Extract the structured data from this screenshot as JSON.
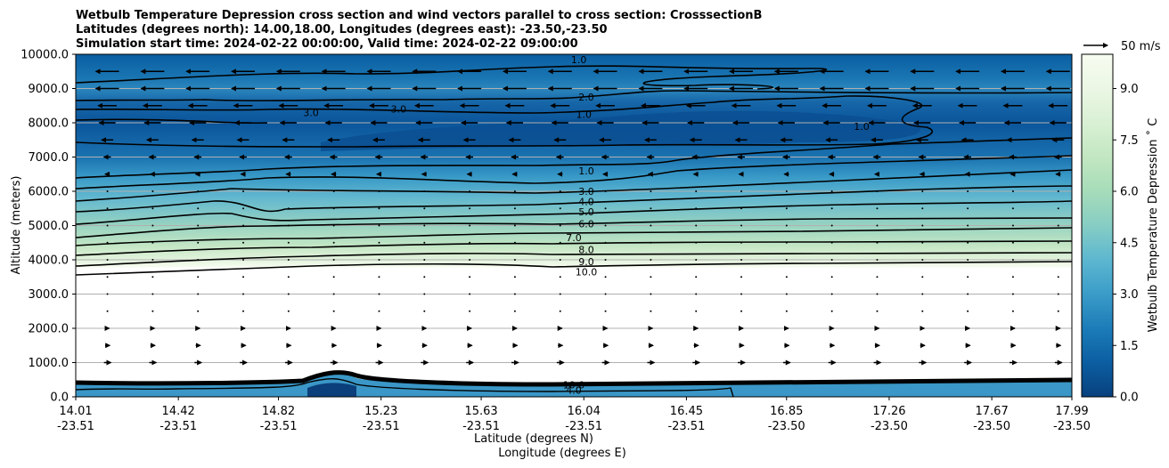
{
  "chart_data": {
    "type": "contourf",
    "title_lines": [
      "Wetbulb Temperature Depression cross section and wind vectors parallel to cross section: CrosssectionB",
      "Latitudes (degrees north): 14.00,18.00, Longitudes (degrees east): -23.50,-23.50",
      "Simulation start time: 2024-02-22 00:00:00, Valid time: 2024-02-22 09:00:00"
    ],
    "ylabel": "Altitude (meters)",
    "xlabel_lat": "Latitude (degrees N)",
    "xlabel_lon": "Longitude (degrees E)",
    "ylim": [
      0,
      10000
    ],
    "xlim": [
      14.01,
      17.99
    ],
    "yticks": [
      "0.0",
      "1000.0",
      "2000.0",
      "3000.0",
      "4000.0",
      "5000.0",
      "6000.0",
      "7000.0",
      "8000.0",
      "9000.0",
      "10000.0"
    ],
    "ytick_values": [
      0,
      1000,
      2000,
      3000,
      4000,
      5000,
      6000,
      7000,
      8000,
      9000,
      10000
    ],
    "xticks": [
      {
        "lat": "14.01",
        "lon": "-23.51",
        "v": 14.01
      },
      {
        "lat": "14.42",
        "lon": "-23.51",
        "v": 14.42
      },
      {
        "lat": "14.82",
        "lon": "-23.51",
        "v": 14.82
      },
      {
        "lat": "15.23",
        "lon": "-23.51",
        "v": 15.23
      },
      {
        "lat": "15.63",
        "lon": "-23.51",
        "v": 15.63
      },
      {
        "lat": "16.04",
        "lon": "-23.51",
        "v": 16.04
      },
      {
        "lat": "16.45",
        "lon": "-23.51",
        "v": 16.45
      },
      {
        "lat": "16.85",
        "lon": "-23.50",
        "v": 16.85
      },
      {
        "lat": "17.26",
        "lon": "-23.50",
        "v": 17.26
      },
      {
        "lat": "17.67",
        "lon": "-23.50",
        "v": 17.67
      },
      {
        "lat": "17.99",
        "lon": "-23.50",
        "v": 17.99
      }
    ],
    "colorbar": {
      "label": "Wetbulb Temperature Depression $^\\circ$ C",
      "label_text": "Wetbulb Temperature Depression ˚ C",
      "range": [
        0,
        10
      ],
      "ticks": [
        "0.0",
        "1.5",
        "3.0",
        "4.5",
        "6.0",
        "7.5",
        "9.0"
      ],
      "tick_values": [
        0,
        1.5,
        3.0,
        4.5,
        6.0,
        7.5,
        9.0
      ],
      "levels": 20
    },
    "quiver_key": "50 m/s",
    "contour_labels": [
      {
        "text": "1.0",
        "lat": 16.02,
        "alt": 9850
      },
      {
        "text": "2.0",
        "lat": 16.05,
        "alt": 8750
      },
      {
        "text": "1.0",
        "lat": 16.04,
        "alt": 8250
      },
      {
        "text": "3.0",
        "lat": 15.3,
        "alt": 8400
      },
      {
        "text": "3.0",
        "lat": 14.95,
        "alt": 8300
      },
      {
        "text": "1.0",
        "lat": 17.15,
        "alt": 7900
      },
      {
        "text": "1.0",
        "lat": 16.05,
        "alt": 6600
      },
      {
        "text": "3.0",
        "lat": 16.05,
        "alt": 6000
      },
      {
        "text": "4.0",
        "lat": 16.05,
        "alt": 5700
      },
      {
        "text": "5.0",
        "lat": 16.05,
        "alt": 5400
      },
      {
        "text": "6.0",
        "lat": 16.05,
        "alt": 5050
      },
      {
        "text": "7.0",
        "lat": 16.0,
        "alt": 4650
      },
      {
        "text": "8.0",
        "lat": 16.05,
        "alt": 4300
      },
      {
        "text": "9.0",
        "lat": 16.05,
        "alt": 3950
      },
      {
        "text": "10.0",
        "lat": 16.05,
        "alt": 3650
      },
      {
        "text": "10.0",
        "lat": 16.0,
        "alt": 350
      },
      {
        "text": "4.0",
        "lat": 16.0,
        "alt": 200
      }
    ],
    "wind_vectors_description_levels": [
      {
        "alt": 9500,
        "u": -1.0
      },
      {
        "alt": 9000,
        "u": -1.0
      },
      {
        "alt": 8500,
        "u": -0.8
      },
      {
        "alt": 8000,
        "u": -0.7
      },
      {
        "alt": 7500,
        "u": -0.5
      },
      {
        "alt": 7000,
        "u": -0.3
      },
      {
        "alt": 6500,
        "u": -0.2
      },
      {
        "alt": 6000,
        "u": -0.1
      },
      {
        "alt": 5500,
        "u": 0.05
      },
      {
        "alt": 5000,
        "u": 0.05
      },
      {
        "alt": 4500,
        "u": 0.05
      },
      {
        "alt": 4000,
        "u": 0.05
      },
      {
        "alt": 3500,
        "u": 0.05
      },
      {
        "alt": 3000,
        "u": 0.05
      },
      {
        "alt": 2500,
        "u": 0.1
      },
      {
        "alt": 2000,
        "u": 0.15
      },
      {
        "alt": 1500,
        "u": 0.2
      },
      {
        "alt": 1000,
        "u": 0.3
      }
    ]
  }
}
